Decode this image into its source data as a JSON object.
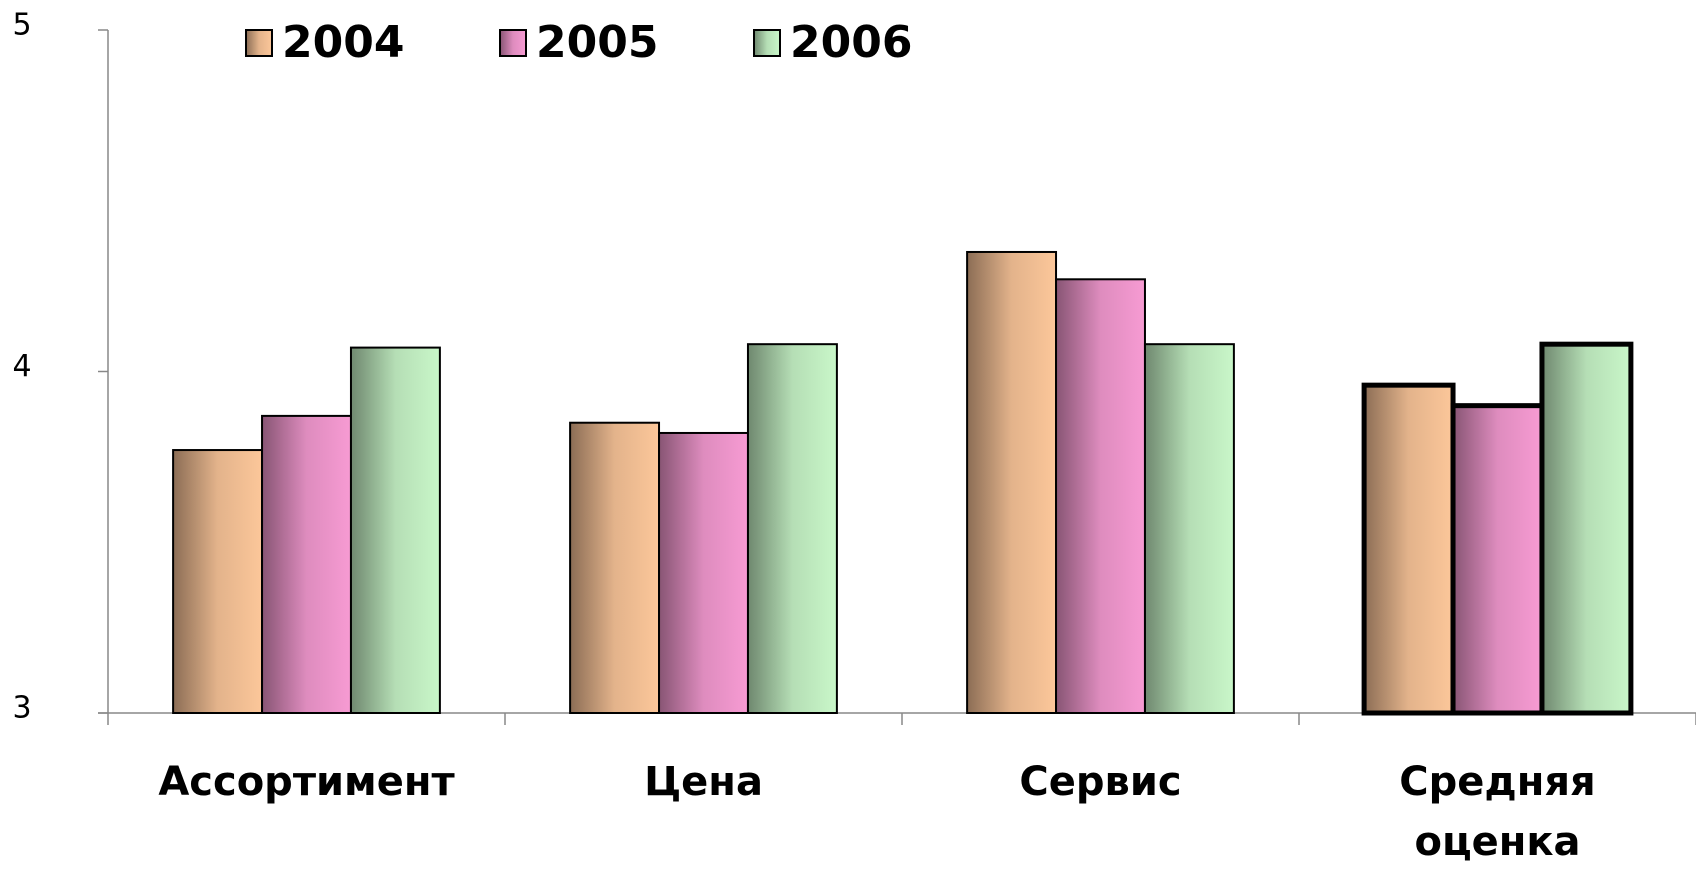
{
  "chart_data": {
    "type": "bar",
    "categories": [
      "Ассортимент",
      "Цена",
      "Сервис",
      "Средняя оценка"
    ],
    "series": [
      {
        "name": "2004",
        "color": "#fcc79a",
        "values": [
          3.77,
          3.85,
          4.35,
          3.96
        ]
      },
      {
        "name": "2005",
        "color": "#f79bd3",
        "values": [
          3.87,
          3.82,
          4.27,
          3.9
        ]
      },
      {
        "name": "2006",
        "color": "#c9f7c9",
        "values": [
          4.07,
          4.08,
          4.08,
          4.08
        ]
      }
    ],
    "ylim": [
      3,
      5
    ],
    "yticks": [
      3,
      4,
      5
    ],
    "legend": "top"
  }
}
